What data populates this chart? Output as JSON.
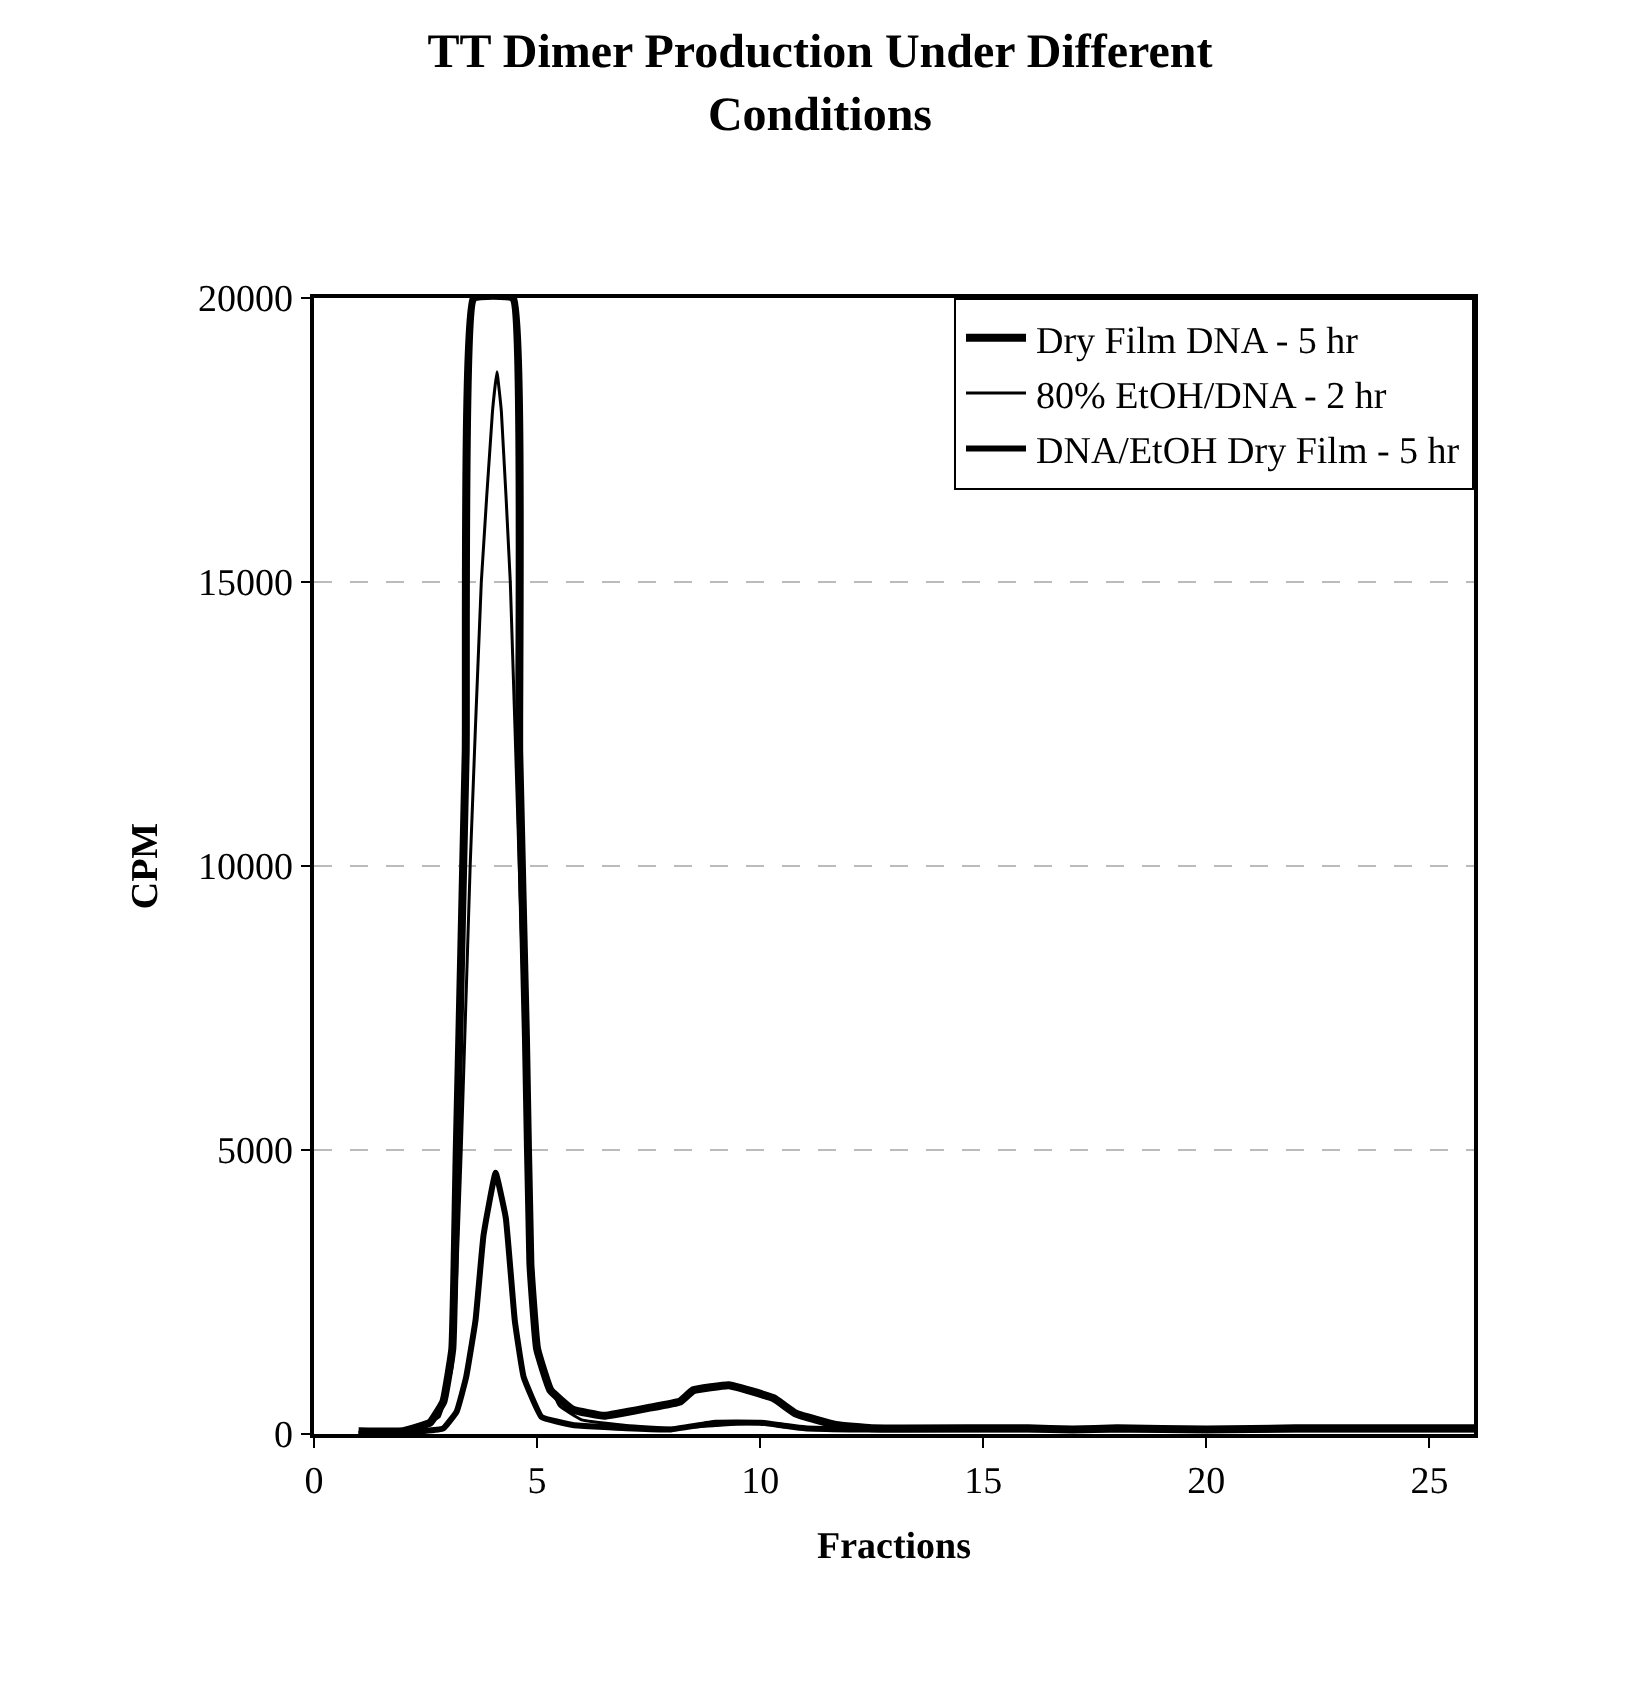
{
  "chart_data": {
    "type": "line",
    "title": "TT Dimer Production Under Different Conditions",
    "xlabel": "Fractions",
    "ylabel": "CPM",
    "xlim": [
      0,
      26
    ],
    "ylim": [
      0,
      20000
    ],
    "xticks": [
      0,
      5,
      10,
      15,
      20,
      25
    ],
    "yticks": [
      0,
      5000,
      10000,
      15000,
      20000
    ],
    "grid": "y",
    "legend": "top right",
    "marker": "none",
    "line_style": "solid",
    "series": [
      {
        "name": "Dry Film DNA - 5 hr",
        "color": "#000000",
        "x": [
          1,
          2,
          2.6,
          2.9,
          3.1,
          3.2,
          3.4,
          3.58,
          4.46,
          4.6,
          4.75,
          4.85,
          5,
          5.3,
          5.8,
          6.5,
          7.5,
          8.2,
          8.5,
          9.3,
          10.3,
          10.8,
          11.7,
          12.5,
          15,
          16,
          17,
          18,
          20,
          22,
          26
        ],
        "values": [
          50,
          50,
          200,
          570,
          1500,
          5000,
          12000,
          20000,
          20000,
          12000,
          7000,
          3000,
          1500,
          770,
          430,
          320,
          460,
          570,
          770,
          860,
          630,
          360,
          160,
          100,
          100,
          100,
          80,
          100,
          80,
          100,
          100
        ]
      },
      {
        "name": "80% EtOH/DNA - 2 hr",
        "color": "#000000",
        "x": [
          1,
          2,
          2.8,
          3.1,
          3.3,
          3.5,
          3.75,
          4.0,
          4.1,
          4.2,
          4.4,
          4.6,
          4.8,
          5,
          5.5,
          6,
          7,
          8,
          9,
          10,
          10.5,
          11,
          12,
          15,
          20,
          26
        ],
        "values": [
          30,
          50,
          300,
          1200,
          5000,
          10000,
          15000,
          18000,
          18700,
          18000,
          15000,
          10000,
          5000,
          1500,
          500,
          250,
          150,
          100,
          150,
          200,
          150,
          120,
          100,
          80,
          80,
          80
        ]
      },
      {
        "name": "DNA/EtOH Dry Film - 5 hr",
        "color": "#000000",
        "x": [
          1,
          2,
          2.9,
          3.2,
          3.41,
          3.62,
          3.8,
          4.07,
          4.3,
          4.5,
          4.7,
          5.1,
          5.8,
          7,
          8,
          9,
          10,
          10.5,
          11,
          12,
          15,
          20,
          26
        ],
        "values": [
          0,
          20,
          100,
          400,
          1000,
          2000,
          3500,
          4600,
          3800,
          2000,
          1000,
          300,
          160,
          100,
          80,
          200,
          200,
          150,
          100,
          80,
          80,
          80,
          80
        ]
      }
    ]
  }
}
